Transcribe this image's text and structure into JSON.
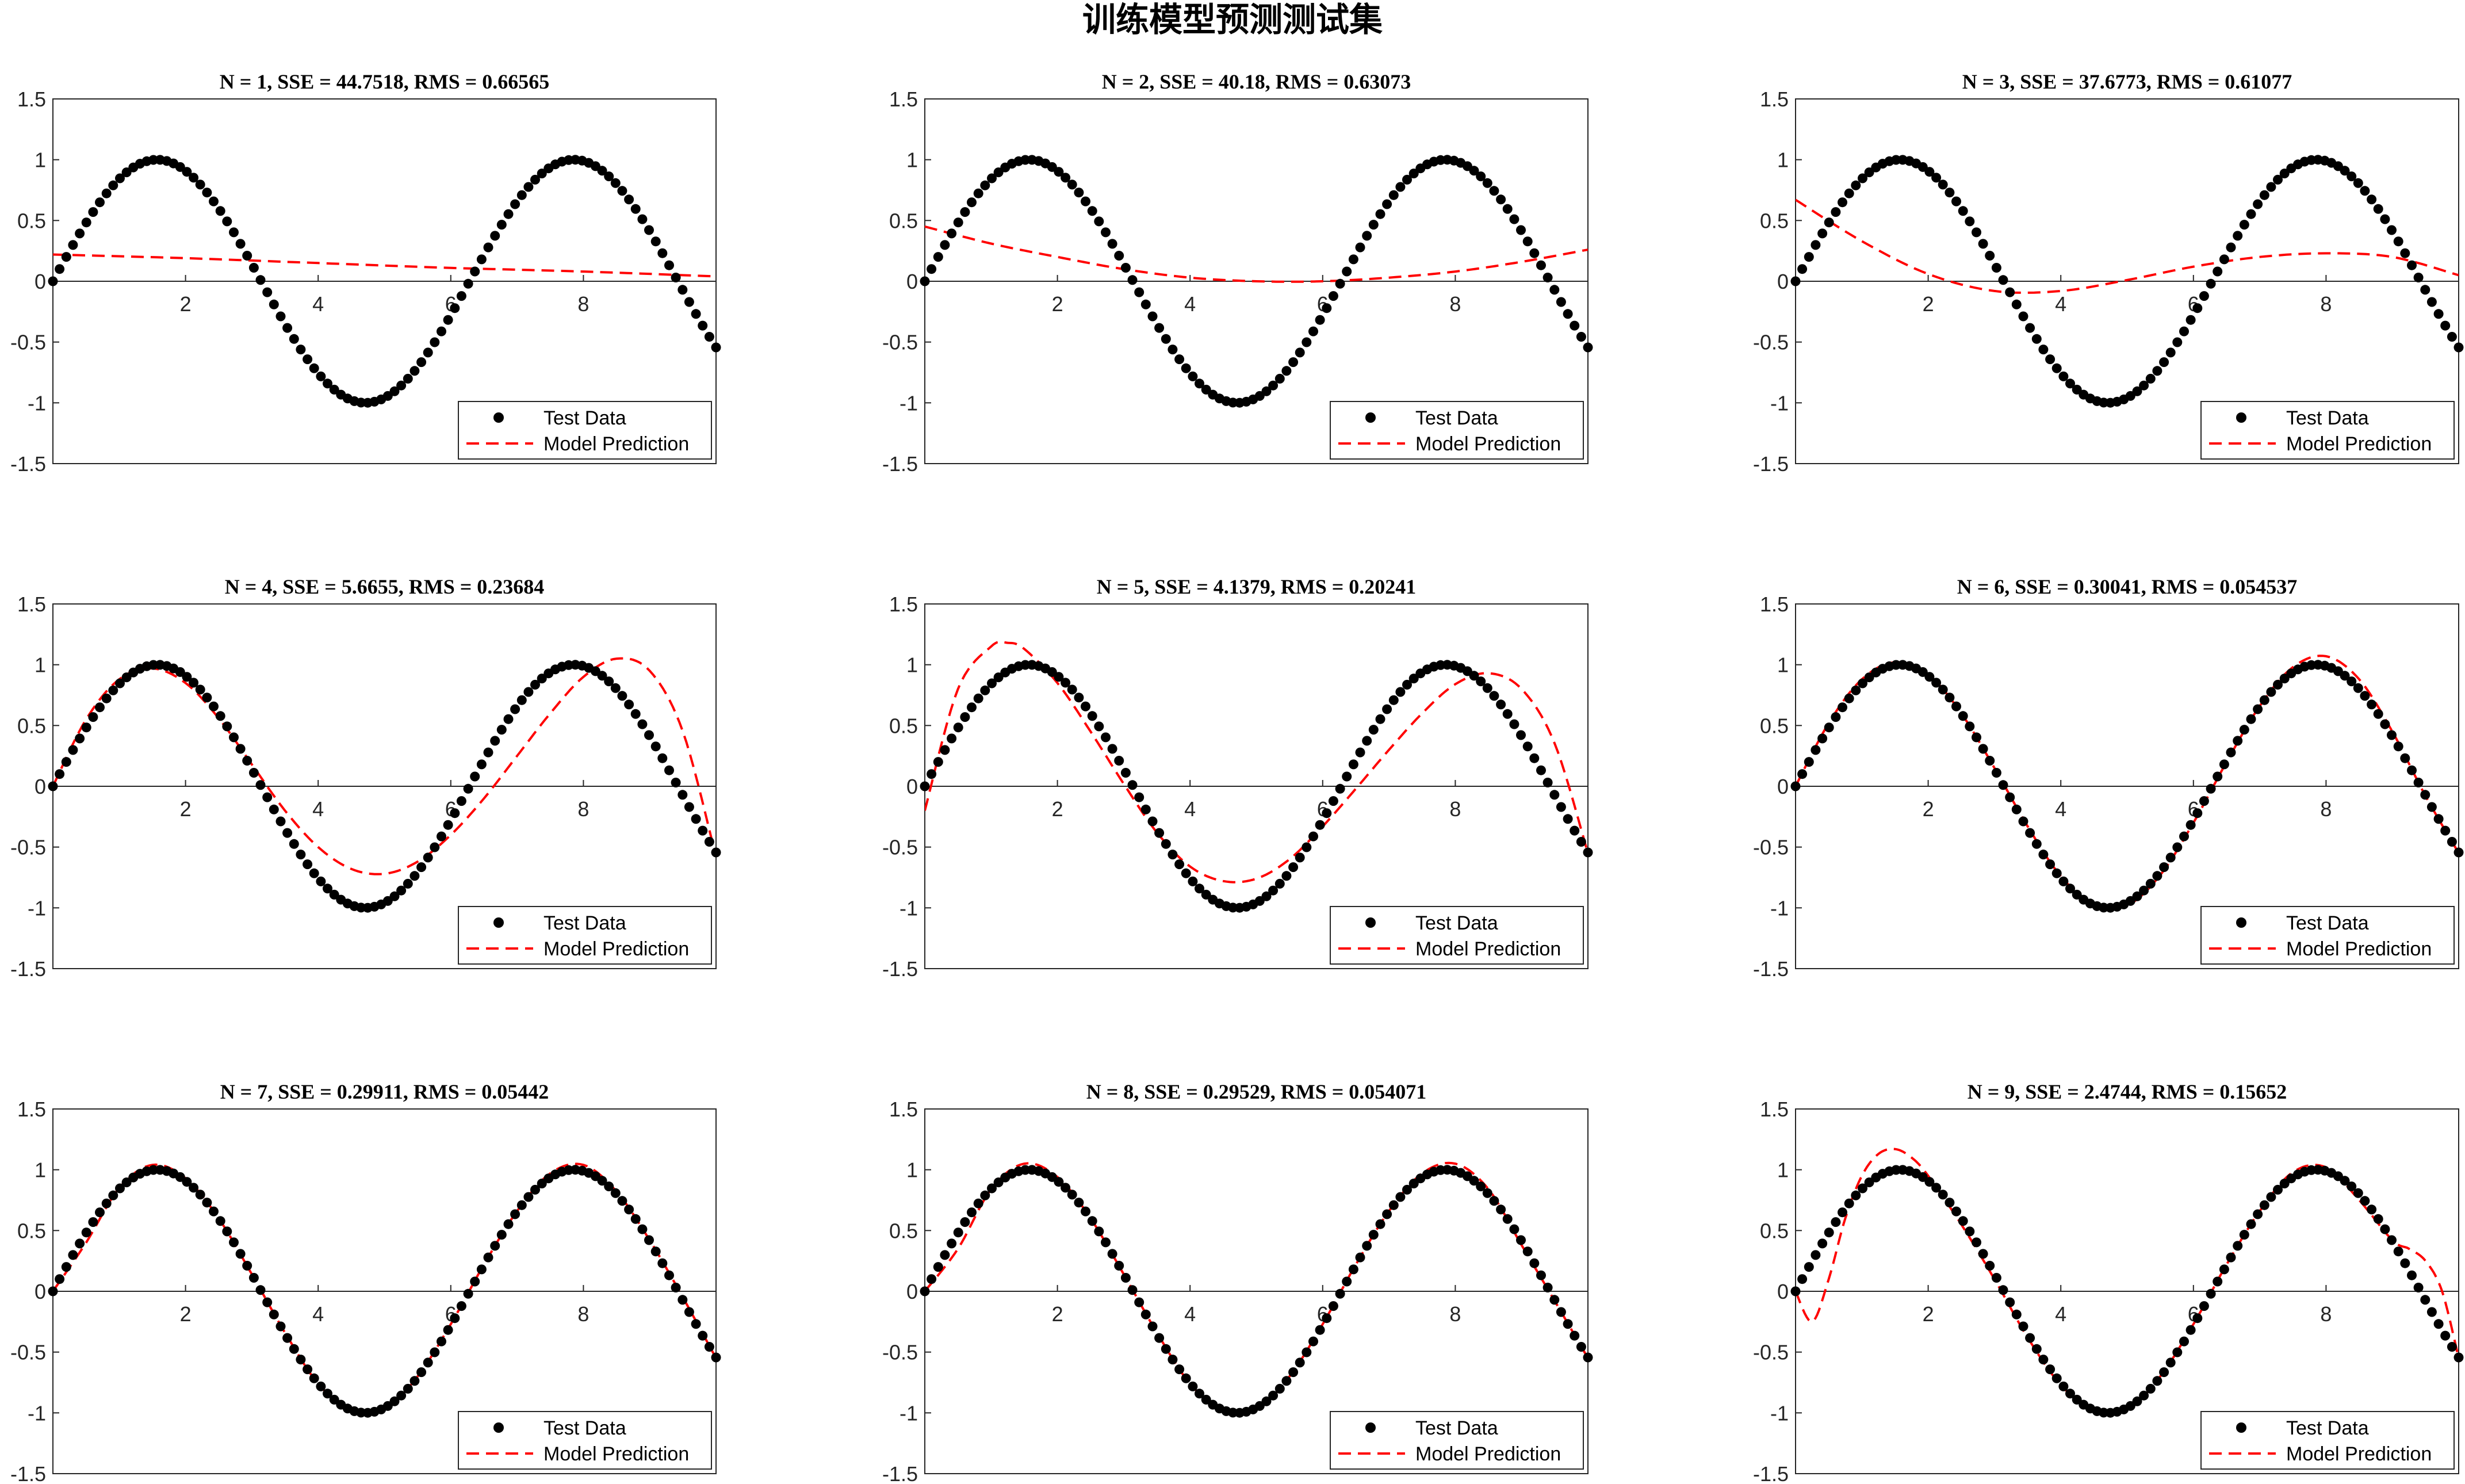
{
  "figure_title": "训练模型预测测试集",
  "chart_data": [
    {
      "type": "line",
      "title": "N = 1, SSE = 44.7518, RMS = 0.66565",
      "xlim": [
        0,
        10
      ],
      "ylim": [
        -1.5,
        1.5
      ],
      "xticks": [
        2,
        4,
        6,
        8
      ],
      "yticks": [
        1.5,
        1,
        0.5,
        0,
        -0.5,
        -1,
        -1.5
      ],
      "grid": false,
      "legend_position": "bottom-right",
      "series": [
        {
          "name": "Test Data",
          "kind": "scatter",
          "color": "#000000",
          "function": "sin(x)",
          "x_range": [
            0,
            10
          ],
          "n_points": 100
        },
        {
          "name": "Model Prediction",
          "kind": "dashed-line",
          "color": "#ff0000",
          "x": [
            0,
            2,
            4,
            6,
            8,
            10
          ],
          "y": [
            0.22,
            0.19,
            0.15,
            0.11,
            0.08,
            0.04
          ]
        }
      ]
    },
    {
      "type": "line",
      "title": "N = 2, SSE = 40.18, RMS = 0.63073",
      "xlim": [
        0,
        10
      ],
      "ylim": [
        -1.5,
        1.5
      ],
      "xticks": [
        2,
        4,
        6,
        8
      ],
      "yticks": [
        1.5,
        1,
        0.5,
        0,
        -0.5,
        -1,
        -1.5
      ],
      "grid": false,
      "legend_position": "bottom-right",
      "series": [
        {
          "name": "Test Data",
          "kind": "scatter",
          "color": "#000000",
          "function": "sin(x)",
          "x_range": [
            0,
            10
          ],
          "n_points": 100
        },
        {
          "name": "Model Prediction",
          "kind": "dashed-line",
          "color": "#ff0000",
          "x": [
            0,
            1,
            2,
            3,
            4,
            5,
            6,
            7,
            8,
            9,
            10
          ],
          "y": [
            0.45,
            0.31,
            0.2,
            0.1,
            0.03,
            0.0,
            0.0,
            0.03,
            0.08,
            0.16,
            0.26
          ]
        }
      ]
    },
    {
      "type": "line",
      "title": "N = 3, SSE = 37.6773, RMS = 0.61077",
      "xlim": [
        0,
        10
      ],
      "ylim": [
        -1.5,
        1.5
      ],
      "xticks": [
        2,
        4,
        6,
        8
      ],
      "yticks": [
        1.5,
        1,
        0.5,
        0,
        -0.5,
        -1,
        -1.5
      ],
      "grid": false,
      "legend_position": "bottom-right",
      "series": [
        {
          "name": "Test Data",
          "kind": "scatter",
          "color": "#000000",
          "function": "sin(x)",
          "x_range": [
            0,
            10
          ],
          "n_points": 100
        },
        {
          "name": "Model Prediction",
          "kind": "dashed-line",
          "color": "#ff0000",
          "x": [
            0,
            1,
            2,
            3,
            4,
            5,
            6,
            7,
            8,
            9,
            10
          ],
          "y": [
            0.67,
            0.33,
            0.06,
            -0.08,
            -0.08,
            0.01,
            0.12,
            0.2,
            0.23,
            0.2,
            0.05
          ]
        }
      ]
    },
    {
      "type": "line",
      "title": "N = 4, SSE = 5.6655, RMS = 0.23684",
      "xlim": [
        0,
        10
      ],
      "ylim": [
        -1.5,
        1.5
      ],
      "xticks": [
        2,
        4,
        6,
        8
      ],
      "yticks": [
        1.5,
        1,
        0.5,
        0,
        -0.5,
        -1,
        -1.5
      ],
      "grid": false,
      "legend_position": "bottom-right",
      "series": [
        {
          "name": "Test Data",
          "kind": "scatter",
          "color": "#000000",
          "function": "sin(x)",
          "x_range": [
            0,
            10
          ],
          "n_points": 100
        },
        {
          "name": "Model Prediction",
          "kind": "dashed-line",
          "color": "#ff0000",
          "x": [
            0,
            0.5,
            1,
            1.5,
            2,
            2.5,
            3,
            3.5,
            4,
            4.5,
            5,
            5.5,
            6,
            6.5,
            7,
            7.5,
            8,
            8.5,
            9,
            9.5,
            10
          ],
          "y": [
            0.0,
            0.55,
            0.88,
            0.97,
            0.85,
            0.56,
            0.18,
            -0.2,
            -0.5,
            -0.68,
            -0.72,
            -0.62,
            -0.4,
            -0.1,
            0.25,
            0.6,
            0.9,
            1.05,
            0.95,
            0.45,
            -0.58
          ]
        }
      ]
    },
    {
      "type": "line",
      "title": "N = 5, SSE = 4.1379, RMS = 0.20241",
      "xlim": [
        0,
        10
      ],
      "ylim": [
        -1.5,
        1.5
      ],
      "xticks": [
        2,
        4,
        6,
        8
      ],
      "yticks": [
        1.5,
        1,
        0.5,
        0,
        -0.5,
        -1,
        -1.5
      ],
      "grid": false,
      "legend_position": "bottom-right",
      "series": [
        {
          "name": "Test Data",
          "kind": "scatter",
          "color": "#000000",
          "function": "sin(x)",
          "x_range": [
            0,
            10
          ],
          "n_points": 100
        },
        {
          "name": "Model Prediction",
          "kind": "dashed-line",
          "color": "#ff0000",
          "x": [
            0,
            0.5,
            1,
            1.25,
            1.5,
            2,
            2.5,
            3,
            3.5,
            4,
            4.5,
            5,
            5.5,
            6,
            6.5,
            7,
            7.5,
            8,
            8.5,
            9,
            9.5,
            10
          ],
          "y": [
            -0.2,
            0.8,
            1.15,
            1.18,
            1.13,
            0.85,
            0.45,
            0.02,
            -0.38,
            -0.66,
            -0.78,
            -0.76,
            -0.6,
            -0.33,
            -0.02,
            0.3,
            0.6,
            0.84,
            0.93,
            0.8,
            0.35,
            -0.55
          ]
        }
      ]
    },
    {
      "type": "line",
      "title": "N = 6, SSE = 0.30041, RMS = 0.054537",
      "xlim": [
        0,
        10
      ],
      "ylim": [
        -1.5,
        1.5
      ],
      "xticks": [
        2,
        4,
        6,
        8
      ],
      "yticks": [
        1.5,
        1,
        0.5,
        0,
        -0.5,
        -1,
        -1.5
      ],
      "grid": false,
      "legend_position": "bottom-right",
      "series": [
        {
          "name": "Test Data",
          "kind": "scatter",
          "color": "#000000",
          "function": "sin(x)",
          "x_range": [
            0,
            10
          ],
          "n_points": 100
        },
        {
          "name": "Model Prediction",
          "kind": "dashed-line",
          "color": "#ff0000",
          "x": [
            0,
            0.5,
            1,
            1.5,
            2,
            2.5,
            3,
            3.5,
            4,
            4.5,
            5,
            5.5,
            6,
            6.5,
            7,
            7.5,
            8,
            8.5,
            9,
            9.5,
            10
          ],
          "y": [
            0.0,
            0.52,
            0.88,
            1.02,
            0.92,
            0.6,
            0.15,
            -0.33,
            -0.74,
            -0.97,
            -0.98,
            -0.73,
            -0.3,
            0.2,
            0.66,
            0.98,
            1.07,
            0.88,
            0.45,
            -0.08,
            -0.55
          ]
        }
      ]
    },
    {
      "type": "line",
      "title": "N = 7, SSE = 0.29911, RMS = 0.05442",
      "xlim": [
        0,
        10
      ],
      "ylim": [
        -1.5,
        1.5
      ],
      "xticks": [
        2,
        4,
        6,
        8
      ],
      "yticks": [
        1.5,
        1,
        0.5,
        0,
        -0.5,
        -1,
        -1.5
      ],
      "grid": false,
      "legend_position": "bottom-right",
      "series": [
        {
          "name": "Test Data",
          "kind": "scatter",
          "color": "#000000",
          "function": "sin(x)",
          "x_range": [
            0,
            10
          ],
          "n_points": 100
        },
        {
          "name": "Model Prediction",
          "kind": "dashed-line",
          "color": "#ff0000",
          "x": [
            0,
            0.5,
            1,
            1.5,
            2,
            2.5,
            3,
            3.5,
            4,
            4.5,
            5,
            5.5,
            6,
            6.5,
            7,
            7.5,
            8,
            8.5,
            9,
            9.5,
            10
          ],
          "y": [
            0.0,
            0.4,
            0.85,
            1.04,
            0.93,
            0.6,
            0.14,
            -0.34,
            -0.76,
            -0.98,
            -0.97,
            -0.7,
            -0.27,
            0.22,
            0.66,
            0.97,
            1.04,
            0.82,
            0.42,
            -0.05,
            -0.55
          ]
        }
      ]
    },
    {
      "type": "line",
      "title": "N = 8, SSE = 0.29529, RMS = 0.054071",
      "xlim": [
        0,
        10
      ],
      "ylim": [
        -1.5,
        1.5
      ],
      "xticks": [
        2,
        4,
        6,
        8
      ],
      "yticks": [
        1.5,
        1,
        0.5,
        0,
        -0.5,
        -1,
        -1.5
      ],
      "grid": false,
      "legend_position": "bottom-right",
      "series": [
        {
          "name": "Test Data",
          "kind": "scatter",
          "color": "#000000",
          "function": "sin(x)",
          "x_range": [
            0,
            10
          ],
          "n_points": 100
        },
        {
          "name": "Model Prediction",
          "kind": "dashed-line",
          "color": "#ff0000",
          "x": [
            0,
            0.5,
            1,
            1.5,
            2,
            2.5,
            3,
            3.5,
            4,
            4.5,
            5,
            5.5,
            6,
            6.5,
            7,
            7.5,
            8,
            8.5,
            9,
            9.5,
            10
          ],
          "y": [
            0.0,
            0.35,
            0.84,
            1.05,
            0.94,
            0.6,
            0.14,
            -0.34,
            -0.76,
            -0.98,
            -0.97,
            -0.7,
            -0.27,
            0.22,
            0.66,
            0.97,
            1.05,
            0.84,
            0.38,
            -0.08,
            -0.55
          ]
        }
      ]
    },
    {
      "type": "line",
      "title": "N = 9, SSE = 2.4744, RMS = 0.15652",
      "xlim": [
        0,
        10
      ],
      "ylim": [
        -1.5,
        1.5
      ],
      "xticks": [
        2,
        4,
        6,
        8
      ],
      "yticks": [
        1.5,
        1,
        0.5,
        0,
        -0.5,
        -1,
        -1.5
      ],
      "grid": false,
      "legend_position": "bottom-right",
      "series": [
        {
          "name": "Test Data",
          "kind": "scatter",
          "color": "#000000",
          "function": "sin(x)",
          "x_range": [
            0,
            10
          ],
          "n_points": 100
        },
        {
          "name": "Model Prediction",
          "kind": "dashed-line",
          "color": "#ff0000",
          "x": [
            0,
            0.25,
            0.5,
            0.75,
            1,
            1.25,
            1.5,
            1.75,
            2,
            2.5,
            3,
            3.5,
            4,
            4.5,
            5,
            5.5,
            6,
            6.5,
            7,
            7.5,
            8,
            8.5,
            9,
            9.25,
            9.5,
            9.75,
            10
          ],
          "y": [
            0.0,
            -0.25,
            0.1,
            0.6,
            0.95,
            1.13,
            1.17,
            1.1,
            0.95,
            0.55,
            0.1,
            -0.38,
            -0.77,
            -0.98,
            -0.97,
            -0.7,
            -0.27,
            0.22,
            0.66,
            0.98,
            1.02,
            0.75,
            0.42,
            0.35,
            0.25,
            0.0,
            -0.55
          ]
        }
      ]
    }
  ]
}
